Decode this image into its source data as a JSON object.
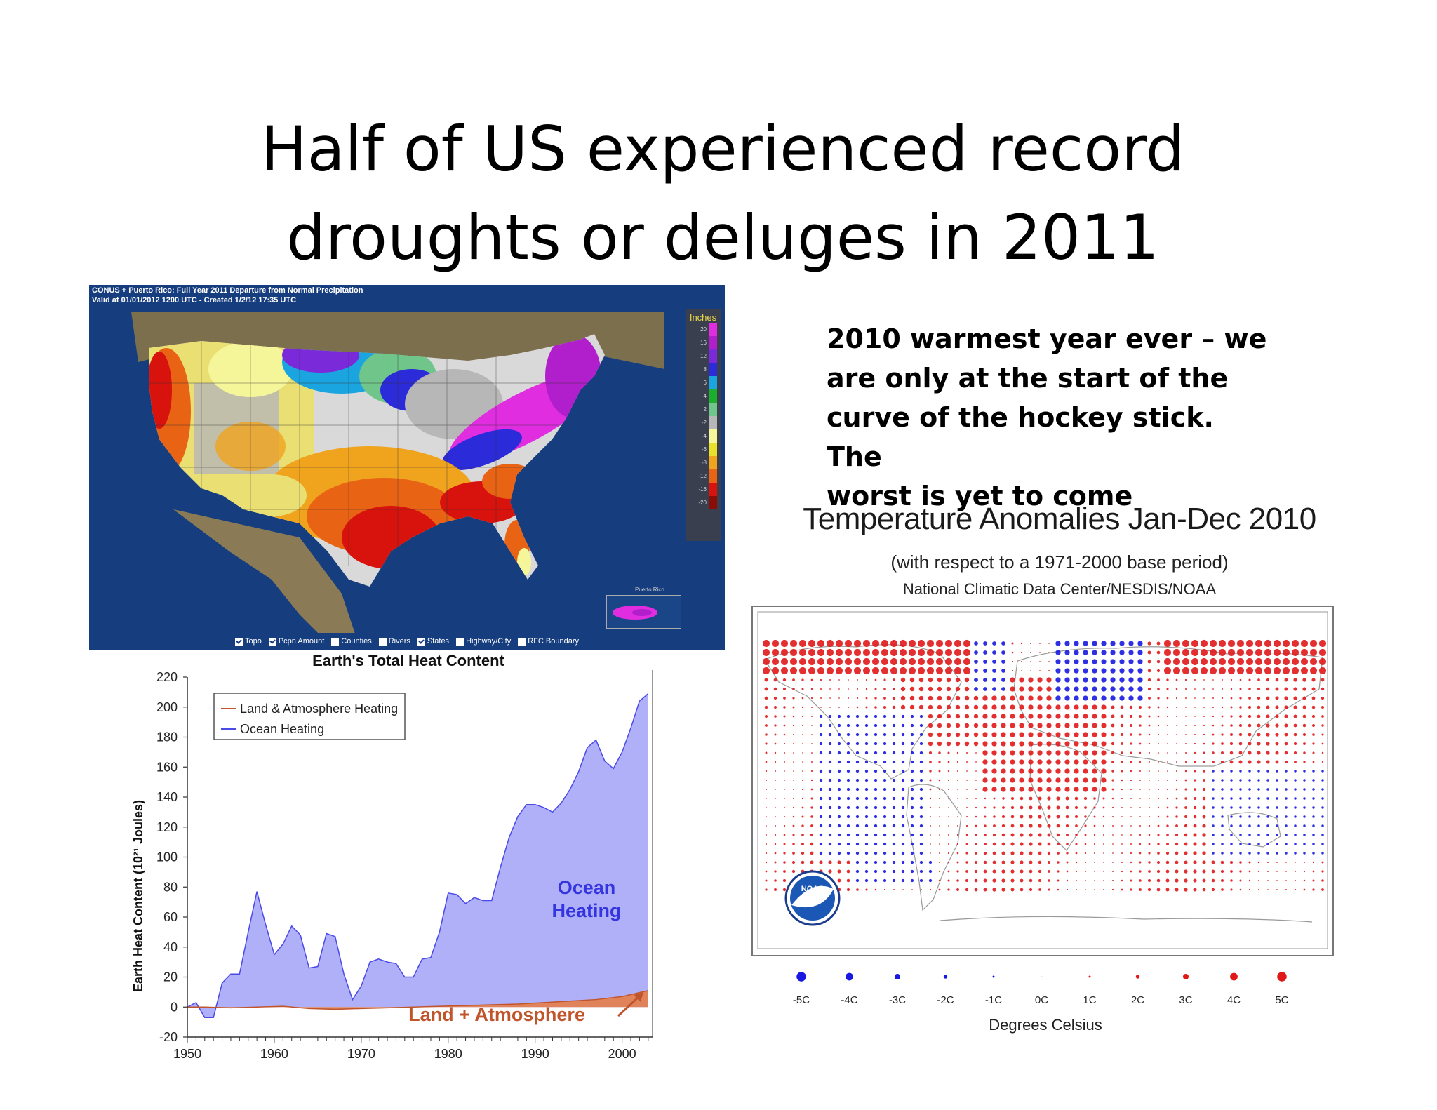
{
  "slide": {
    "title_line1": "Half of US experienced record",
    "title_line2": "droughts or deluges in 2011",
    "side_text": [
      "2010 warmest year ever – we",
      "are only at the start of the",
      "curve of the hockey stick. The",
      "worst is yet to come"
    ]
  },
  "us_map": {
    "header_line1": "CONUS + Puerto Rico: Full Year 2011 Departure from Normal Precipitation",
    "header_line2": "Valid at 01/01/2012 1200 UTC - Created 1/2/12 17:35 UTC",
    "legend_title": "Inches",
    "legend": [
      {
        "label": "20",
        "color": "#e02de0"
      },
      {
        "label": "16",
        "color": "#b11fcc"
      },
      {
        "label": "12",
        "color": "#7a2ad8"
      },
      {
        "label": "8",
        "color": "#2b2bd9"
      },
      {
        "label": "6",
        "color": "#1aa4e0"
      },
      {
        "label": "4",
        "color": "#1bb02b"
      },
      {
        "label": "2",
        "color": "#6fc58a"
      },
      {
        "label": "-2",
        "color": "#b7b7b7"
      },
      {
        "label": "-4",
        "color": "#f5f59a"
      },
      {
        "label": "-6",
        "color": "#e8e02a"
      },
      {
        "label": "-8",
        "color": "#f0a41e"
      },
      {
        "label": "-12",
        "color": "#e86314"
      },
      {
        "label": "-16",
        "color": "#d8120c"
      },
      {
        "label": "-20",
        "color": "#8a0d08"
      }
    ],
    "inset_label": "Puerto Rico",
    "footer_options": [
      {
        "label": "Topo",
        "checked": true
      },
      {
        "label": "Pcpn Amount",
        "checked": true
      },
      {
        "label": "Counties",
        "checked": false
      },
      {
        "label": "Rivers",
        "checked": false
      },
      {
        "label": "States",
        "checked": true
      },
      {
        "label": "Highway/City",
        "checked": false
      },
      {
        "label": "RFC Boundary",
        "checked": false
      }
    ]
  },
  "chart_data": [
    {
      "type": "area",
      "title": "Earth's Total Heat Content",
      "ylabel": "Earth Heat Content (10²¹ Joules)",
      "xlabel": "",
      "xlim": [
        1950,
        2003.5
      ],
      "ylim": [
        -20,
        220
      ],
      "x_ticks": [
        1950,
        1960,
        1970,
        1980,
        1990,
        2000
      ],
      "y_ticks": [
        -20,
        0,
        20,
        40,
        60,
        80,
        100,
        120,
        140,
        160,
        180,
        200,
        220
      ],
      "legend_placement": "top-left",
      "series": [
        {
          "name": "Land & Atmosphere Heating",
          "color": "#c0552c",
          "fill": "#e0835a",
          "x": [
            1950,
            1952,
            1955,
            1958,
            1961,
            1964,
            1967,
            1970,
            1973,
            1976,
            1979,
            1982,
            1985,
            1988,
            1991,
            1994,
            1997,
            2000,
            2003
          ],
          "values": [
            0,
            0,
            -0.5,
            0,
            0.5,
            -1,
            -1.5,
            -1,
            -0.5,
            0,
            0.5,
            1,
            1.5,
            2,
            3,
            4,
            5,
            7,
            11
          ]
        },
        {
          "name": "Ocean Heating",
          "color": "#4a4ae8",
          "fill": "#b0b0f8",
          "x": [
            1950,
            1951,
            1952,
            1953,
            1954,
            1955,
            1956,
            1957,
            1958,
            1959,
            1960,
            1961,
            1962,
            1963,
            1964,
            1965,
            1966,
            1967,
            1968,
            1969,
            1970,
            1971,
            1972,
            1973,
            1974,
            1975,
            1976,
            1977,
            1978,
            1979,
            1980,
            1981,
            1982,
            1983,
            1984,
            1985,
            1986,
            1987,
            1988,
            1989,
            1990,
            1991,
            1992,
            1993,
            1994,
            1995,
            1996,
            1997,
            1998,
            1999,
            2000,
            2001,
            2002,
            2003
          ],
          "values": [
            0,
            3,
            -7,
            -7,
            16,
            22,
            22,
            50,
            77,
            55,
            35,
            42,
            54,
            48,
            26,
            27,
            49,
            47,
            22,
            5,
            14,
            30,
            32,
            30,
            29,
            20,
            20,
            32,
            33,
            50,
            76,
            75,
            69,
            73,
            71,
            71,
            93,
            113,
            127,
            135,
            135,
            133,
            130,
            136,
            145,
            157,
            173,
            178,
            164,
            159,
            170,
            186,
            204,
            209
          ]
        }
      ],
      "annotations": [
        "Ocean",
        "Heating",
        "Land + Atmosphere"
      ]
    },
    {
      "type": "scatter",
      "title": "Temperature Anomalies Jan-Dec 2010",
      "subtitle": "(with respect to a 1971-2000 base period)",
      "source": "National Climatic Data Center/NESDIS/NOAA",
      "xlabel": "Degrees Celsius",
      "scale": [
        {
          "label": "-5C",
          "value": -5
        },
        {
          "label": "-4C",
          "value": -4
        },
        {
          "label": "-3C",
          "value": -3
        },
        {
          "label": "-2C",
          "value": -2
        },
        {
          "label": "-1C",
          "value": -1
        },
        {
          "label": "0C",
          "value": 0
        },
        {
          "label": "1C",
          "value": 1
        },
        {
          "label": "2C",
          "value": 2
        },
        {
          "label": "3C",
          "value": 3
        },
        {
          "label": "4C",
          "value": 4
        },
        {
          "label": "5C",
          "value": 5
        }
      ],
      "warm_color": "#e01818",
      "cool_color": "#1818e0",
      "logo_text": "NOAA"
    }
  ]
}
